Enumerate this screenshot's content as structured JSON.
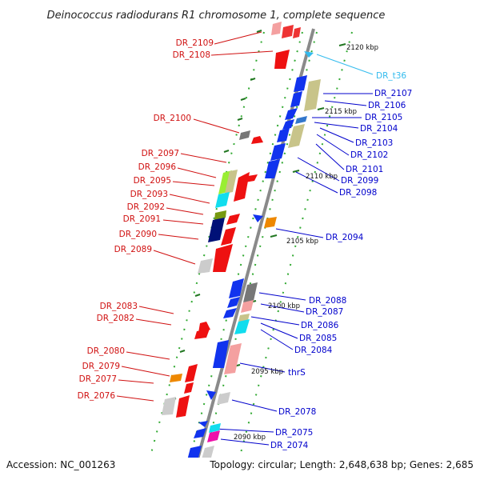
{
  "title": "Deinococcus radiodurans R1 chromosome 1, complete sequence",
  "footer": {
    "accession": "Accession: NC_001263",
    "summary": "Topology: circular; Length: 2,648,638 bp; Genes: 2,685"
  },
  "colors": {
    "reverse_label": "#d01010",
    "forward_label": "#0000cc",
    "rna_label": "#33bbee",
    "axis": "#888888",
    "tick": "#228822"
  },
  "scale_labels": [
    "2120 kbp",
    "2115 kbp",
    "2110 kbp",
    "2105 kbp",
    "2100 kbp",
    "2095 kbp",
    "2090 kbp"
  ],
  "genes_left": [
    "DR_2109",
    "DR_2108",
    "DR_2100",
    "DR_2097",
    "DR_2096",
    "DR_2095",
    "DR_2093",
    "DR_2092",
    "DR_2091",
    "DR_2090",
    "DR_2089",
    "DR_2083",
    "DR_2082",
    "DR_2080",
    "DR_2079",
    "DR_2077",
    "DR_2076"
  ],
  "genes_right": [
    "DR_t36",
    "DR_2107",
    "DR_2106",
    "DR_2105",
    "DR_2104",
    "DR_2103",
    "DR_2102",
    "DR_2101",
    "DR_2099",
    "DR_2098",
    "DR_2094",
    "DR_2088",
    "DR_2087",
    "DR_2086",
    "DR_2085",
    "DR_2084",
    "thrS",
    "DR_2078",
    "DR_2075",
    "DR_2074"
  ]
}
